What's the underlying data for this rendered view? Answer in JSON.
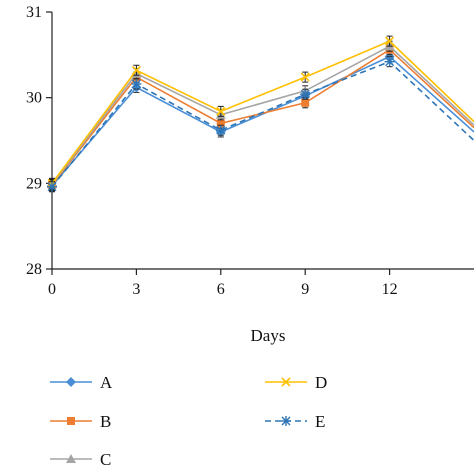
{
  "chart_data": {
    "type": "line",
    "title": "",
    "xlabel": "Days",
    "ylabel": "",
    "x": [
      0,
      3,
      6,
      9,
      12,
      15
    ],
    "x_ticks": [
      "0",
      "3",
      "6",
      "9",
      "12"
    ],
    "y_ticks": [
      "28",
      "29",
      "30",
      "31"
    ],
    "xlim": [
      0,
      15
    ],
    "ylim": [
      28,
      31
    ],
    "grid": false,
    "legend_position": "bottom",
    "series": [
      {
        "name": "A",
        "values": [
          28.97,
          30.12,
          29.6,
          30.02,
          30.48,
          29.6
        ],
        "color": "#4a8fd6",
        "marker": "diamond",
        "dash": "solid"
      },
      {
        "name": "B",
        "values": [
          28.98,
          30.24,
          29.7,
          29.94,
          30.56,
          29.65
        ],
        "color": "#ed7d31",
        "marker": "square",
        "dash": "solid"
      },
      {
        "name": "C",
        "values": [
          28.99,
          30.28,
          29.8,
          30.08,
          30.6,
          29.68
        ],
        "color": "#a5a5a5",
        "marker": "triangle",
        "dash": "solid"
      },
      {
        "name": "D",
        "values": [
          29.0,
          30.32,
          29.84,
          30.24,
          30.66,
          29.72
        ],
        "color": "#ffc000",
        "marker": "x",
        "dash": "solid"
      },
      {
        "name": "E",
        "values": [
          28.96,
          30.16,
          29.62,
          30.04,
          30.42,
          29.5
        ],
        "color": "#2e75b6",
        "marker": "star",
        "dash": "dashed"
      }
    ]
  }
}
